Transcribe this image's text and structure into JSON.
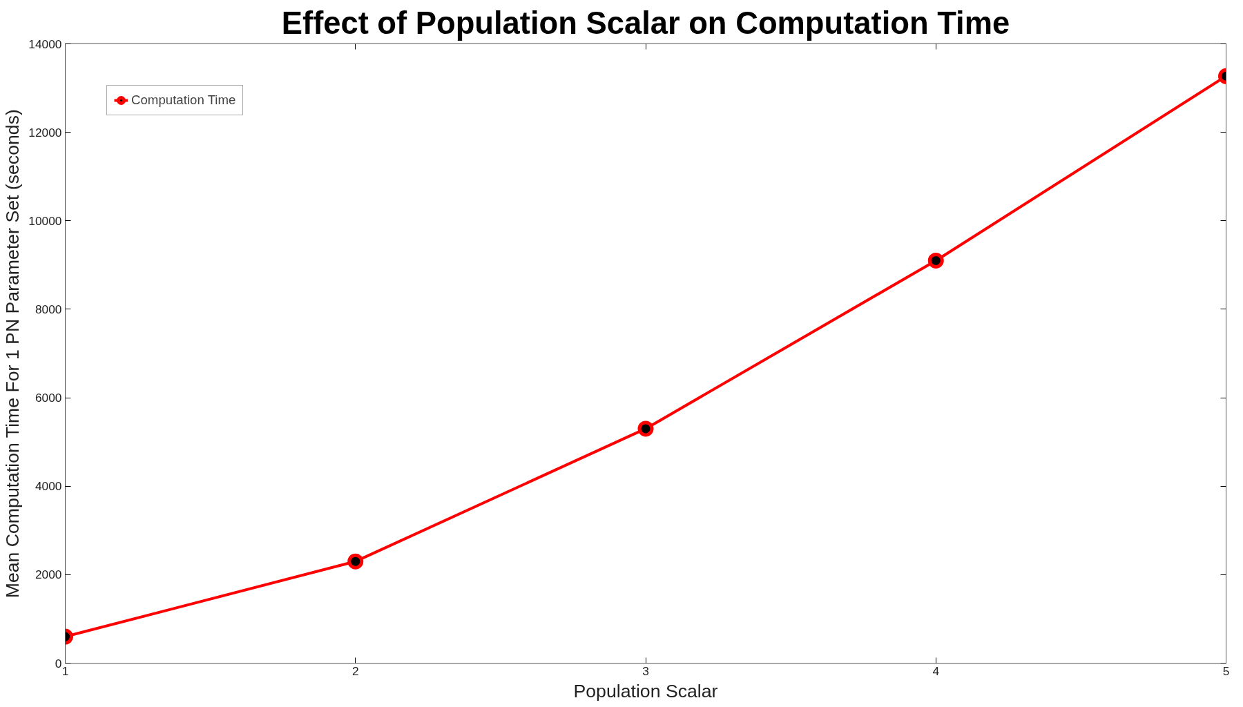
{
  "chart_data": {
    "type": "line",
    "title": "Effect of Population Scalar on Computation Time",
    "xlabel": "Population Scalar",
    "ylabel": "Mean Computation Time For 1 PN Parameter Set (seconds)",
    "x": [
      1,
      2,
      3,
      4,
      5
    ],
    "series": [
      {
        "name": "Computation Time",
        "color": "#ff0000",
        "values": [
          600,
          2300,
          5300,
          9100,
          13270
        ]
      }
    ],
    "xlim": [
      1,
      5
    ],
    "xticks": [
      1,
      2,
      3,
      4,
      5
    ],
    "ylim": [
      0,
      14000
    ],
    "yticks": [
      0,
      2000,
      4000,
      6000,
      8000,
      10000,
      12000,
      14000
    ],
    "grid": false,
    "legend": "top left",
    "marker": "circle",
    "line_style": "solid"
  }
}
